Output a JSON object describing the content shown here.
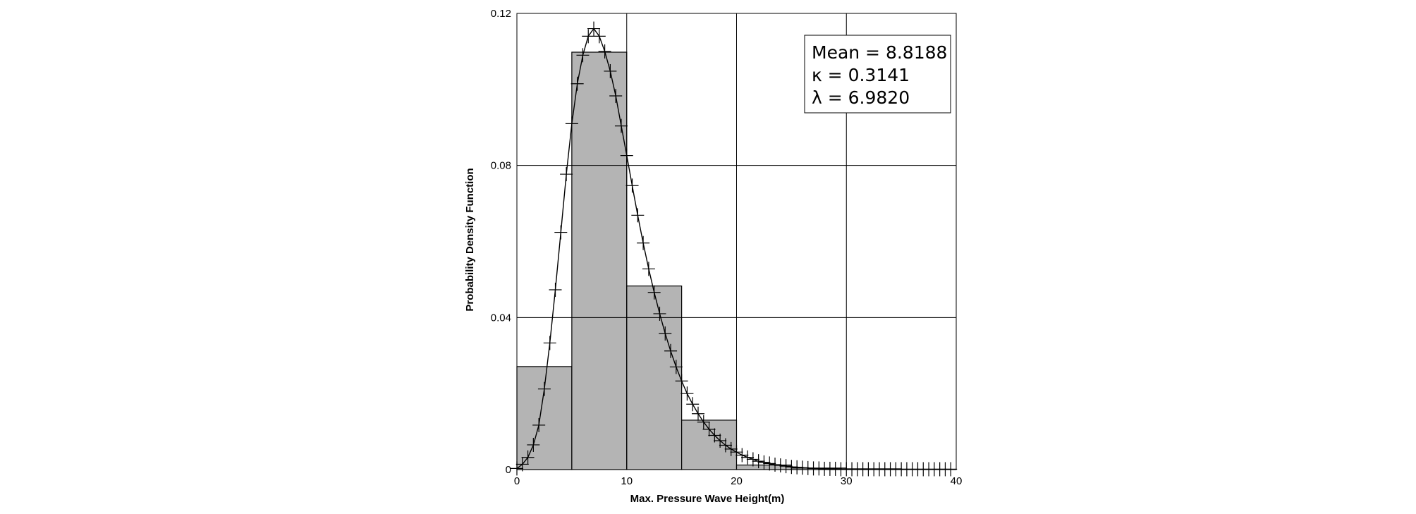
{
  "chart_data": {
    "type": "bar",
    "title": "",
    "xlabel": "Max. Pressure Wave Height(m)",
    "ylabel": "Probability Density Function",
    "xlim": [
      0,
      40
    ],
    "ylim": [
      0,
      0.12
    ],
    "x_ticks": [
      0,
      10,
      20,
      30,
      40
    ],
    "x_tick_labels": [
      "0",
      "10",
      "20",
      "30",
      "40"
    ],
    "y_ticks": [
      0,
      0.04,
      0.08,
      0.12
    ],
    "y_tick_labels": [
      "0",
      "0.04",
      "0.08",
      "0.12"
    ],
    "grid": true,
    "histogram": {
      "bin_edges": [
        0,
        5,
        10,
        15,
        20,
        25,
        30,
        35,
        40
      ],
      "values": [
        0.0271,
        0.1098,
        0.0483,
        0.013,
        0.0012,
        0.0004,
        0.0002,
        0.0001
      ]
    },
    "fitted_curve": {
      "type": "line",
      "x": [
        0,
        0.5,
        1,
        1.5,
        2,
        2.5,
        3,
        3.5,
        4,
        4.5,
        5,
        5.5,
        6,
        6.5,
        7,
        7.5,
        8,
        8.5,
        9,
        9.5,
        10,
        10.5,
        11,
        11.5,
        12,
        12.5,
        13,
        13.5,
        14,
        14.5,
        15,
        15.5,
        16,
        16.5,
        17,
        17.5,
        18,
        18.5,
        19,
        19.5,
        20,
        20.5,
        21,
        21.5,
        22,
        22.5,
        23,
        23.5,
        24,
        24.5,
        25,
        25.5,
        26,
        26.5,
        27,
        27.5,
        28,
        28.5,
        29,
        29.5,
        30,
        30.5,
        31,
        31.5,
        32,
        32.5,
        33,
        33.5,
        34,
        34.5,
        35
      ],
      "y": [
        0.0003,
        0.0014,
        0.0032,
        0.0065,
        0.0117,
        0.0212,
        0.0333,
        0.0473,
        0.0624,
        0.0777,
        0.091,
        0.1015,
        0.109,
        0.114,
        0.116,
        0.114,
        0.11,
        0.1048,
        0.0983,
        0.0904,
        0.0826,
        0.0747,
        0.0669,
        0.0596,
        0.0528,
        0.0466,
        0.041,
        0.0358,
        0.0312,
        0.027,
        0.0233,
        0.02,
        0.0172,
        0.0147,
        0.0125,
        0.0106,
        0.009,
        0.0076,
        0.0064,
        0.0054,
        0.0046,
        0.0038,
        0.0032,
        0.0027,
        0.0022,
        0.0019,
        0.0016,
        0.0013,
        0.0011,
        0.0009,
        0.0007,
        0.0006,
        0.0005,
        0.0004,
        0.0003,
        0.0003,
        0.0002,
        0.0002,
        0.0002,
        0.0001,
        0.0001,
        0.0001,
        0.0001,
        0.0001,
        0.0001,
        0.0001,
        0.0001,
        0.0001,
        0.0001,
        0.0001,
        0.0001
      ]
    },
    "markers": {
      "type": "scatter",
      "marker": "plus",
      "x": [
        0,
        0.5,
        1,
        1.5,
        2,
        2.5,
        3,
        3.5,
        4,
        4.5,
        5,
        5.5,
        6,
        6.5,
        7,
        7.5,
        8,
        8.5,
        9,
        9.5,
        10,
        10.5,
        11,
        11.5,
        12,
        12.5,
        13,
        13.5,
        14,
        14.5,
        15,
        15.5,
        16,
        16.5,
        17,
        17.5,
        18,
        18.5,
        19,
        19.5,
        20,
        20.5,
        21,
        21.5,
        22,
        22.5,
        23,
        23.5,
        24,
        24.5,
        25,
        25.5,
        26,
        26.5,
        27,
        27.5,
        28,
        28.5,
        29,
        29.5,
        30,
        30.5,
        31,
        31.5,
        32,
        32.5,
        33,
        33.5,
        34,
        34.5,
        35,
        35.5,
        36,
        36.5,
        37,
        37.5,
        38,
        38.5,
        39,
        39.5
      ],
      "y": [
        0.0003,
        0.0014,
        0.0032,
        0.0065,
        0.0117,
        0.0212,
        0.0333,
        0.0473,
        0.0624,
        0.0777,
        0.091,
        0.1015,
        0.109,
        0.114,
        0.116,
        0.114,
        0.11,
        0.1048,
        0.0983,
        0.0904,
        0.0826,
        0.0747,
        0.0669,
        0.0596,
        0.0528,
        0.0466,
        0.041,
        0.0358,
        0.0312,
        0.027,
        0.0233,
        0.02,
        0.0172,
        0.0147,
        0.0125,
        0.0106,
        0.009,
        0.0076,
        0.0064,
        0.0054,
        0.0046,
        0.0038,
        0.0032,
        0.0027,
        0.0022,
        0.0019,
        0.0016,
        0.0013,
        0.0011,
        0.0009,
        0.0007,
        0.0006,
        0.0005,
        0.0004,
        0.0003,
        0.0003,
        0.0002,
        0.0002,
        0.0002,
        0.0001,
        0.0001,
        0.0001,
        0.0001,
        0.0001,
        0.0001,
        0.0001,
        0.0001,
        0.0001,
        0.0001,
        0.0001,
        0.0001,
        0.0001,
        0.0001,
        0.0001,
        0.0001,
        0.0001,
        0.0001,
        0.0001,
        0.0001,
        0.0001
      ]
    },
    "annotation_box": {
      "placement": "top-right",
      "lines": [
        "Mean = 8.8188",
        "κ = 0.3141",
        "λ = 6.9820"
      ]
    },
    "colors": {
      "bar_fill": "#b4b4b4",
      "bar_stroke": "#000000",
      "grid": "#000000",
      "curve": "#000000",
      "background": "#ffffff"
    }
  }
}
